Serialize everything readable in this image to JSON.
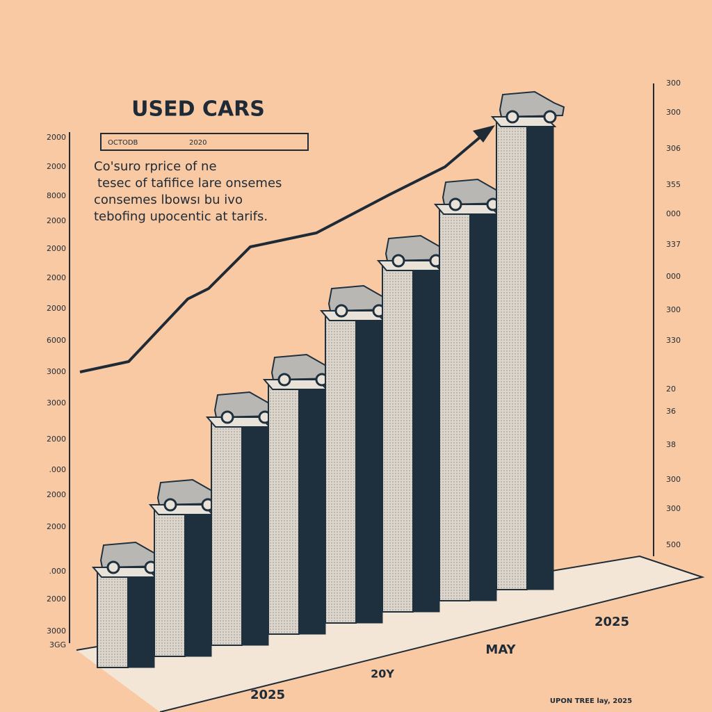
{
  "chart_data": {
    "type": "bar",
    "title": "USED CARS",
    "subtitle": [
      "OCTODB",
      "2020"
    ],
    "description": [
      "Co'suro rprice of ne",
      "tesec of tafifice lare onsemes",
      "consemes lbowsı bu ivo",
      "tebofing upocentic at tarifs."
    ],
    "categories": [
      null,
      null,
      null,
      null,
      null,
      null,
      null,
      null
    ],
    "values": [
      16,
      26,
      40,
      46,
      57,
      65,
      74,
      88
    ],
    "ylim": [
      0,
      100
    ],
    "color": "#d8d2c8",
    "side_color": "#1e2f3d",
    "left_labels": [
      "2000",
      "2000",
      "8000",
      "2000",
      "2000",
      "2000",
      "2000",
      "6000",
      "3000",
      "3000",
      "2000",
      ".000",
      "2000",
      "2000",
      ".000",
      "2000",
      "3000",
      "3GG"
    ],
    "right_labels": [
      "300",
      "300",
      "306",
      "355",
      "000",
      "337",
      "000",
      "300",
      "330",
      "20",
      "36",
      "38",
      "300",
      "300",
      "500"
    ],
    "bottom_labels": [
      "2025",
      "20Y",
      "MAY",
      "2025",
      "UPON TREE lay, 2025"
    ]
  }
}
